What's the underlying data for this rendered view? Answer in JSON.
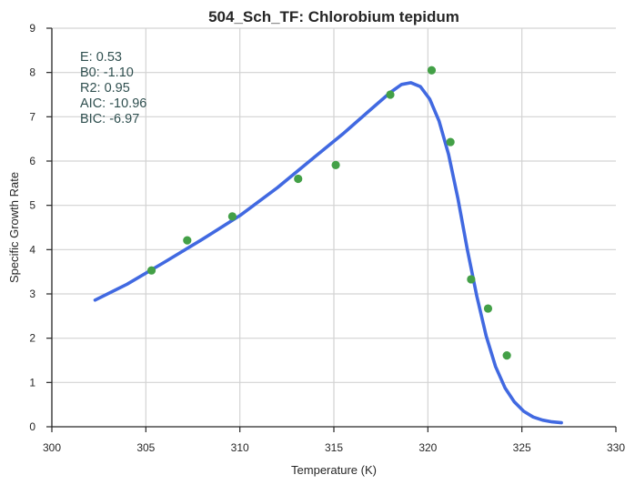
{
  "chart_data": {
    "type": "scatter",
    "title": "504_Sch_TF: Chlorobium tepidum",
    "xlabel": "Temperature (K)",
    "ylabel": "Specific Growth Rate",
    "xlim": [
      300,
      330
    ],
    "ylim": [
      0,
      9
    ],
    "xticks": [
      300,
      305,
      310,
      315,
      320,
      325,
      330
    ],
    "yticks": [
      0,
      1,
      2,
      3,
      4,
      5,
      6,
      7,
      8,
      9
    ],
    "grid": true,
    "annotations": [
      "E:  0.53",
      "B0:  -1.10",
      "R2:  0.95",
      "AIC: -10.96",
      "BIC: -6.97"
    ],
    "series": [
      {
        "kind": "points",
        "color": "#43a047",
        "x": [
          305.3,
          307.2,
          309.6,
          313.1,
          315.1,
          318.0,
          320.2,
          321.2,
          322.3,
          323.2,
          324.2
        ],
        "y": [
          3.53,
          4.21,
          4.75,
          5.6,
          5.91,
          7.5,
          8.05,
          6.43,
          3.33,
          2.67,
          1.61
        ]
      },
      {
        "kind": "line",
        "color": "#4169e1",
        "x": [
          302.3,
          304.0,
          306.0,
          308.0,
          310.0,
          312.0,
          314.0,
          315.5,
          317.0,
          318.0,
          318.6,
          319.1,
          319.6,
          320.1,
          320.6,
          321.1,
          321.6,
          322.1,
          322.6,
          323.1,
          323.6,
          324.1,
          324.6,
          325.1,
          325.6,
          326.1,
          326.6,
          327.1
        ],
        "y": [
          2.86,
          3.22,
          3.72,
          4.23,
          4.77,
          5.4,
          6.1,
          6.62,
          7.18,
          7.55,
          7.73,
          7.77,
          7.68,
          7.4,
          6.9,
          6.15,
          5.15,
          4.0,
          2.95,
          2.05,
          1.36,
          0.88,
          0.56,
          0.35,
          0.22,
          0.15,
          0.11,
          0.09
        ]
      }
    ]
  }
}
